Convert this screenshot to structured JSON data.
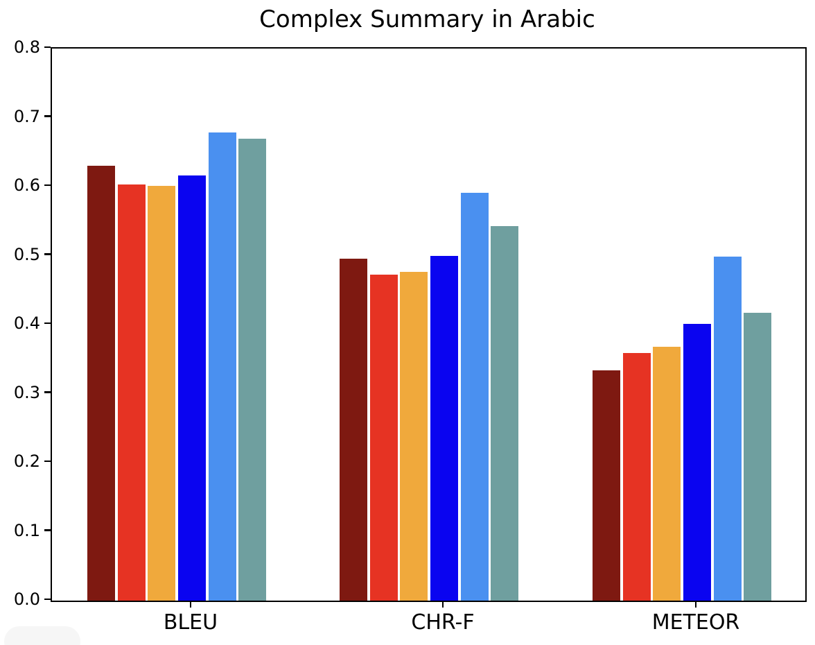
{
  "title": "Complex Summary in Arabic",
  "chart_data": {
    "type": "bar",
    "title": "Complex Summary in Arabic",
    "categories": [
      "BLEU",
      "CHR-F",
      "METEOR"
    ],
    "series": [
      {
        "name": "dark-red",
        "color": "#7e1911",
        "values": [
          0.63,
          0.495,
          0.334
        ]
      },
      {
        "name": "red",
        "color": "#e63323",
        "values": [
          0.603,
          0.472,
          0.359
        ]
      },
      {
        "name": "orange",
        "color": "#f0a93c",
        "values": [
          0.601,
          0.476,
          0.368
        ]
      },
      {
        "name": "blue",
        "color": "#0a04f0",
        "values": [
          0.616,
          0.5,
          0.401
        ]
      },
      {
        "name": "light-blue",
        "color": "#4a90f0",
        "values": [
          0.678,
          0.591,
          0.499
        ]
      },
      {
        "name": "teal",
        "color": "#6f9f9f",
        "values": [
          0.669,
          0.543,
          0.417
        ]
      }
    ],
    "xlabel": "",
    "ylabel": "",
    "ylim": [
      0.0,
      0.8
    ],
    "ytick_labels": [
      "0.0",
      "0.1",
      "0.2",
      "0.3",
      "0.4",
      "0.5",
      "0.6",
      "0.7",
      "0.8"
    ],
    "legend_position": "none",
    "grid": false
  }
}
